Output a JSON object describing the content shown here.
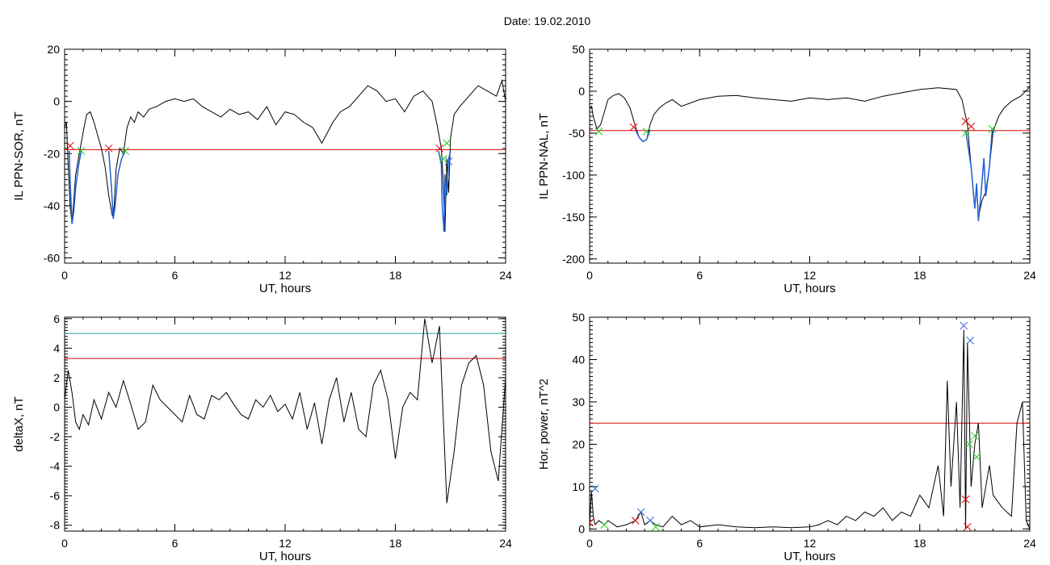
{
  "title": "Date:  19.02.2010",
  "colors": {
    "trace": "#000000",
    "event": "#1f5fd6",
    "threshold": "#dd0000",
    "threshold_alt": "#2aa0a0",
    "start_marker": "#dd0000",
    "end_marker": "#22cc22",
    "peak_marker": "#3366dd"
  },
  "chart_data": [
    {
      "type": "line",
      "xlabel": "UT, hours",
      "ylabel": "IL PPN-SOR, nT",
      "xlim": [
        0,
        24
      ],
      "ylim": [
        -62,
        20
      ],
      "xticks": [
        0,
        6,
        12,
        18,
        24
      ],
      "yticks": [
        -60,
        -40,
        -20,
        0,
        20
      ],
      "xtick_labels": [
        "0",
        "6",
        "12",
        "18",
        "24"
      ],
      "ytick_labels": [
        "-60",
        "-40",
        "-20",
        "0",
        "20"
      ],
      "series": [
        {
          "role": "trace",
          "color": "#000000",
          "x": [
            0,
            0.1,
            0.2,
            0.3,
            0.4,
            0.5,
            0.6,
            0.8,
            1.0,
            1.2,
            1.4,
            1.6,
            1.8,
            2.0,
            2.2,
            2.4,
            2.6,
            2.7,
            2.8,
            3.0,
            3.2,
            3.4,
            3.6,
            3.8,
            4.0,
            4.3,
            4.6,
            5.0,
            5.5,
            6.0,
            6.5,
            7.0,
            7.5,
            8.0,
            8.5,
            9.0,
            9.5,
            10.0,
            10.5,
            11.0,
            11.5,
            12.0,
            12.5,
            13.0,
            13.5,
            14.0,
            14.3,
            14.6,
            15.0,
            15.5,
            16.0,
            16.5,
            17.0,
            17.5,
            18.0,
            18.5,
            19.0,
            19.5,
            20.0,
            20.3,
            20.5,
            20.6,
            20.7,
            20.8,
            20.9,
            21.0,
            21.2,
            21.5,
            22.0,
            22.5,
            23.0,
            23.5,
            23.8,
            24.0
          ],
          "y": [
            -10,
            -8,
            -25,
            -40,
            -47,
            -38,
            -28,
            -20,
            -12,
            -5,
            -4,
            -8,
            -13,
            -18,
            -25,
            -36,
            -44,
            -40,
            -26,
            -18,
            -20,
            -10,
            -6,
            -8,
            -4,
            -6,
            -3,
            -2,
            0,
            1,
            0,
            1,
            -2,
            -4,
            -6,
            -3,
            -5,
            -4,
            -7,
            -2,
            -9,
            -4,
            -5,
            -8,
            -10,
            -16,
            -12,
            -8,
            -4,
            -2,
            2,
            6,
            4,
            0,
            1,
            -4,
            2,
            4,
            0,
            -10,
            -18,
            -30,
            -50,
            -22,
            -35,
            -14,
            -5,
            -2,
            2,
            6,
            4,
            2,
            8,
            0
          ]
        },
        {
          "role": "event",
          "color": "#1f5fd6",
          "segments": [
            {
              "x": [
                0.25,
                0.3,
                0.4,
                0.5,
                0.6,
                0.75,
                0.9
              ],
              "y": [
                -19,
                -30,
                -47,
                -42,
                -33,
                -25,
                -19
              ]
            },
            {
              "x": [
                2.4,
                2.55,
                2.65,
                2.75,
                2.9,
                3.1,
                3.3
              ],
              "y": [
                -19,
                -33,
                -45,
                -40,
                -28,
                -22,
                -19
              ]
            },
            {
              "x": [
                20.35,
                20.5,
                20.55,
                20.65,
                20.7,
                20.8,
                20.9,
                21.0
              ],
              "y": [
                -19,
                -24,
                -40,
                -50,
                -28,
                -36,
                -22,
                -19
              ]
            }
          ]
        }
      ],
      "thresholds": [
        {
          "value": -18.5,
          "color": "#dd0000"
        }
      ],
      "markers": [
        {
          "x": 0.3,
          "y": -17,
          "color": "#dd0000"
        },
        {
          "x": 0.9,
          "y": -19,
          "color": "#22cc22"
        },
        {
          "x": 2.4,
          "y": -18,
          "color": "#dd0000"
        },
        {
          "x": 3.3,
          "y": -19,
          "color": "#22cc22"
        },
        {
          "x": 20.4,
          "y": -18,
          "color": "#dd0000"
        },
        {
          "x": 20.6,
          "y": -22,
          "color": "#22cc22"
        },
        {
          "x": 20.8,
          "y": -16,
          "color": "#22cc22"
        },
        {
          "x": 20.9,
          "y": -23,
          "color": "#3366dd"
        }
      ]
    },
    {
      "type": "line",
      "xlabel": "UT, hours",
      "ylabel": "IL PPN-NAL, nT",
      "xlim": [
        0,
        24
      ],
      "ylim": [
        -205,
        50
      ],
      "xticks": [
        0,
        6,
        12,
        18,
        24
      ],
      "yticks": [
        -200,
        -150,
        -100,
        -50,
        0,
        50
      ],
      "xtick_labels": [
        "0",
        "6",
        "12",
        "18",
        "24"
      ],
      "ytick_labels": [
        "-200",
        "-150",
        "-100",
        "-50",
        "0",
        "50"
      ],
      "series": [
        {
          "role": "trace",
          "color": "#000000",
          "x": [
            0,
            0.1,
            0.2,
            0.4,
            0.6,
            0.8,
            1.0,
            1.3,
            1.6,
            1.9,
            2.2,
            2.5,
            2.7,
            2.9,
            3.1,
            3.3,
            3.5,
            3.8,
            4.1,
            4.5,
            5.0,
            6.0,
            7.0,
            8.0,
            9.0,
            10.0,
            11.0,
            12.0,
            13.0,
            14.0,
            15.0,
            16.0,
            17.0,
            18.0,
            19.0,
            20.0,
            20.3,
            20.6,
            20.8,
            21.0,
            21.1,
            21.2,
            21.4,
            21.6,
            21.8,
            22.0,
            22.3,
            22.6,
            23.0,
            23.5,
            24.0
          ],
          "y": [
            -20,
            -18,
            -30,
            -45,
            -40,
            -25,
            -10,
            -5,
            -3,
            -8,
            -20,
            -42,
            -55,
            -60,
            -58,
            -40,
            -28,
            -20,
            -15,
            -10,
            -18,
            -10,
            -6,
            -5,
            -8,
            -10,
            -12,
            -8,
            -10,
            -8,
            -12,
            -6,
            -2,
            2,
            4,
            2,
            -10,
            -40,
            -90,
            -140,
            -110,
            -150,
            -130,
            -120,
            -90,
            -48,
            -30,
            -20,
            -12,
            -6,
            5
          ]
        },
        {
          "role": "event",
          "color": "#1f5fd6",
          "segments": [
            {
              "x": [
                2.5,
                2.7,
                2.9,
                3.1,
                3.3
              ],
              "y": [
                -46,
                -55,
                -60,
                -58,
                -46
              ]
            },
            {
              "x": [
                20.5,
                20.8,
                21.0,
                21.1,
                21.2,
                21.35,
                21.5,
                21.6,
                21.8,
                21.95
              ],
              "y": [
                -46,
                -90,
                -140,
                -110,
                -155,
                -120,
                -80,
                -125,
                -90,
                -46
              ]
            }
          ]
        }
      ],
      "thresholds": [
        {
          "value": -47,
          "color": "#dd0000"
        }
      ],
      "markers": [
        {
          "x": 0.5,
          "y": -48,
          "color": "#22cc22"
        },
        {
          "x": 2.4,
          "y": -43,
          "color": "#dd0000"
        },
        {
          "x": 3.1,
          "y": -48,
          "color": "#22cc22"
        },
        {
          "x": 20.5,
          "y": -36,
          "color": "#dd0000"
        },
        {
          "x": 20.8,
          "y": -42,
          "color": "#dd0000"
        },
        {
          "x": 20.5,
          "y": -50,
          "color": "#22cc22"
        },
        {
          "x": 21.95,
          "y": -45,
          "color": "#22cc22"
        }
      ]
    },
    {
      "type": "line",
      "xlabel": "UT, hours",
      "ylabel": "deltaX, nT",
      "xlim": [
        0,
        24
      ],
      "ylim": [
        -8.4,
        6.1
      ],
      "xticks": [
        0,
        6,
        12,
        18,
        24
      ],
      "yticks": [
        -8,
        -6,
        -4,
        -2,
        0,
        2,
        4,
        6
      ],
      "xtick_labels": [
        "0",
        "6",
        "12",
        "18",
        "24"
      ],
      "ytick_labels": [
        "-8",
        "-6",
        "-4",
        "-2",
        "0",
        "2",
        "4",
        "6"
      ],
      "series": [
        {
          "role": "trace",
          "color": "#000000",
          "x": [
            0,
            0.2,
            0.4,
            0.6,
            0.8,
            1.0,
            1.3,
            1.6,
            2.0,
            2.4,
            2.8,
            3.2,
            3.6,
            4.0,
            4.4,
            4.8,
            5.2,
            5.6,
            6.0,
            6.4,
            6.8,
            7.2,
            7.6,
            8.0,
            8.4,
            8.8,
            9.2,
            9.6,
            10.0,
            10.4,
            10.8,
            11.2,
            11.6,
            12.0,
            12.4,
            12.8,
            13.2,
            13.6,
            14.0,
            14.4,
            14.8,
            15.2,
            15.6,
            16.0,
            16.4,
            16.8,
            17.2,
            17.6,
            18.0,
            18.4,
            18.8,
            19.2,
            19.6,
            20.0,
            20.4,
            20.8,
            21.2,
            21.6,
            22.0,
            22.4,
            22.8,
            23.2,
            23.6,
            24.0
          ],
          "y": [
            0.5,
            2.5,
            1.0,
            -1.0,
            -1.5,
            -0.5,
            -1.2,
            0.5,
            -0.8,
            1.0,
            0.0,
            1.8,
            0.2,
            -1.5,
            -1.0,
            1.5,
            0.5,
            0.0,
            -0.5,
            -1.0,
            0.8,
            -0.5,
            -0.8,
            0.8,
            0.5,
            1.0,
            0.2,
            -0.5,
            -0.8,
            0.5,
            0.0,
            0.8,
            -0.3,
            0.2,
            -0.8,
            1.0,
            -1.5,
            0.3,
            -2.5,
            0.5,
            2.0,
            -1.0,
            1.0,
            -1.5,
            -2.0,
            1.5,
            2.5,
            0.5,
            -3.5,
            0.0,
            1.0,
            0.5,
            6.0,
            3.0,
            5.5,
            -6.5,
            -3.0,
            1.5,
            3.0,
            3.5,
            1.5,
            -3.0,
            -5.0,
            2.0
          ]
        }
      ],
      "thresholds": [
        {
          "value": 5.0,
          "color": "#2aa0a0"
        },
        {
          "value": 3.3,
          "color": "#dd0000"
        }
      ],
      "markers": []
    },
    {
      "type": "line",
      "xlabel": "UT, hours",
      "ylabel": "Hor. power, nT^2",
      "xlim": [
        0,
        24
      ],
      "ylim": [
        -0.5,
        50
      ],
      "xticks": [
        0,
        6,
        12,
        18,
        24
      ],
      "yticks": [
        0,
        10,
        20,
        30,
        40,
        50
      ],
      "xtick_labels": [
        "0",
        "6",
        "12",
        "18",
        "24"
      ],
      "ytick_labels": [
        "0",
        "10",
        "20",
        "30",
        "40",
        "50"
      ],
      "series": [
        {
          "role": "trace",
          "color": "#000000",
          "x": [
            0,
            0.1,
            0.2,
            0.3,
            0.5,
            0.8,
            1.0,
            1.5,
            2.0,
            2.5,
            2.8,
            3.0,
            3.3,
            3.6,
            4.0,
            4.5,
            5.0,
            5.5,
            6.0,
            7.0,
            8.0,
            9.0,
            10.0,
            11.0,
            12.0,
            12.5,
            13.0,
            13.5,
            14.0,
            14.5,
            15.0,
            15.5,
            16.0,
            16.5,
            17.0,
            17.5,
            18.0,
            18.5,
            19.0,
            19.3,
            19.5,
            19.7,
            20.0,
            20.2,
            20.4,
            20.5,
            20.6,
            20.8,
            21.0,
            21.2,
            21.4,
            21.6,
            21.8,
            22.0,
            22.5,
            23.0,
            23.3,
            23.6,
            23.8,
            24.0
          ],
          "y": [
            1,
            9,
            3,
            1,
            2,
            1,
            2,
            0.5,
            1,
            2,
            4,
            1,
            2,
            1,
            0.5,
            3,
            1,
            2,
            0.5,
            1,
            0.5,
            0.3,
            0.5,
            0.3,
            0.5,
            1,
            2,
            1,
            3,
            2,
            4,
            3,
            5,
            2,
            4,
            3,
            8,
            5,
            15,
            3,
            35,
            10,
            30,
            5,
            47,
            0,
            44,
            10,
            20,
            25,
            5,
            10,
            15,
            8,
            5,
            3,
            25,
            30,
            2,
            0
          ]
        }
      ],
      "thresholds": [
        {
          "value": 25,
          "color": "#dd0000"
        }
      ],
      "markers": [
        {
          "x": 0.0,
          "y": 1.5,
          "color": "#dd0000"
        },
        {
          "x": 0.3,
          "y": 9.5,
          "color": "#3366dd"
        },
        {
          "x": 0.8,
          "y": 1,
          "color": "#22cc22"
        },
        {
          "x": 2.5,
          "y": 2,
          "color": "#dd0000"
        },
        {
          "x": 2.8,
          "y": 4,
          "color": "#3366dd"
        },
        {
          "x": 3.3,
          "y": 2,
          "color": "#3366dd"
        },
        {
          "x": 3.6,
          "y": 0.5,
          "color": "#22cc22"
        },
        {
          "x": 20.4,
          "y": 48,
          "color": "#3366dd"
        },
        {
          "x": 20.5,
          "y": 7,
          "color": "#dd0000"
        },
        {
          "x": 20.6,
          "y": 0.5,
          "color": "#dd0000"
        },
        {
          "x": 20.7,
          "y": 20,
          "color": "#22cc22"
        },
        {
          "x": 20.75,
          "y": 44.5,
          "color": "#3366dd"
        },
        {
          "x": 21.0,
          "y": 22,
          "color": "#22cc22"
        },
        {
          "x": 21.1,
          "y": 17,
          "color": "#22cc22"
        }
      ]
    }
  ]
}
